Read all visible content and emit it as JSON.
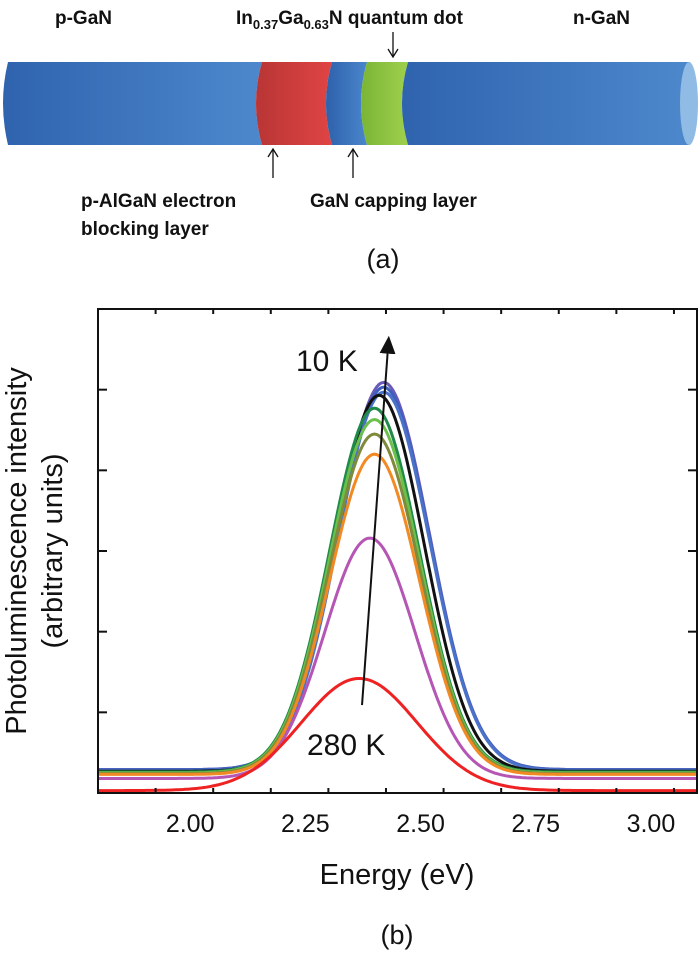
{
  "diagram": {
    "labels": {
      "p_gan": "p-GaN",
      "qd_in": "In",
      "qd_in_sub": "0.37",
      "qd_ga": "Ga",
      "qd_ga_sub": "0.63",
      "qd_rest": "N quantum dot",
      "n_gan": "n-GaN",
      "ebl_line1": "p-AlGaN electron",
      "ebl_line2": "blocking layer",
      "capping": "GaN capping layer"
    },
    "panel_label": "(a)",
    "colors": {
      "gan": "#3a70bd",
      "algan": "#d23c3c",
      "quantum_dot": "#8cc43c",
      "end_cap": "#8fbbe4"
    }
  },
  "chart_data": {
    "type": "line",
    "panel_label": "(b)",
    "xlabel": "Energy (eV)",
    "ylabel_line1": "Photoluminescence intensity",
    "ylabel_line2": "(arbitrary units)",
    "xlim": [
      1.8,
      3.1
    ],
    "ylim": [
      0,
      6
    ],
    "x_ticks": [
      "2.00",
      "2.25",
      "2.50",
      "2.75",
      "3.00"
    ],
    "x_tick_values": [
      2.0,
      2.25,
      2.5,
      2.75,
      3.0
    ],
    "x_minor_step": 0.125,
    "y_ticks_unlabeled": [
      1,
      2,
      3,
      4,
      5
    ],
    "grid": false,
    "annotations": {
      "top": "10 K",
      "bottom": "280 K"
    },
    "arrow": {
      "from": [
        2.373,
        1.09
      ],
      "to": [
        2.43,
        5.57
      ]
    },
    "series": [
      {
        "color": "#6a5ab8",
        "peak_energy": 2.42,
        "peak_intensity": 5.09,
        "fwhm": 0.235,
        "baseline": 0.29
      },
      {
        "color": "#3f5fbf",
        "peak_energy": 2.42,
        "peak_intensity": 5.03,
        "fwhm": 0.235,
        "baseline": 0.29
      },
      {
        "color": "#4a72c8",
        "peak_energy": 2.42,
        "peak_intensity": 4.97,
        "fwhm": 0.235,
        "baseline": 0.28
      },
      {
        "color": "#111111",
        "peak_energy": 2.41,
        "peak_intensity": 4.93,
        "fwhm": 0.23,
        "baseline": 0.27
      },
      {
        "color": "#1f8a4a",
        "peak_energy": 2.4,
        "peak_intensity": 4.77,
        "fwhm": 0.23,
        "baseline": 0.26
      },
      {
        "color": "#6cbf4a",
        "peak_energy": 2.4,
        "peak_intensity": 4.63,
        "fwhm": 0.23,
        "baseline": 0.25
      },
      {
        "color": "#7f8a3a",
        "peak_energy": 2.4,
        "peak_intensity": 4.45,
        "fwhm": 0.23,
        "baseline": 0.24
      },
      {
        "color": "#f28a24",
        "peak_energy": 2.4,
        "peak_intensity": 4.2,
        "fwhm": 0.23,
        "baseline": 0.23
      },
      {
        "color": "#b556b5",
        "peak_energy": 2.39,
        "peak_intensity": 3.16,
        "fwhm": 0.232,
        "baseline": 0.18
      },
      {
        "color": "#ee2222",
        "peak_energy": 2.367,
        "peak_intensity": 1.42,
        "fwhm": 0.296,
        "baseline": 0.03
      }
    ]
  }
}
